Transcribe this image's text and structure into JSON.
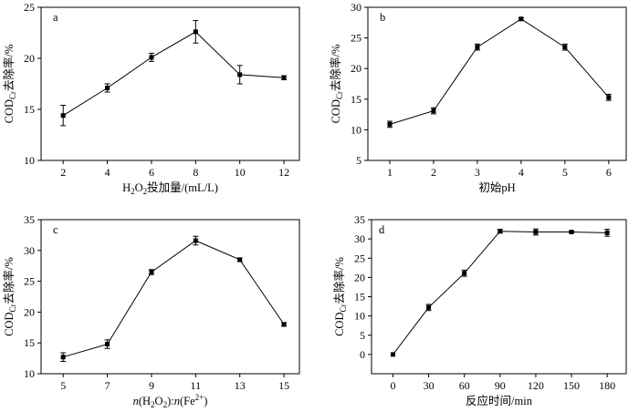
{
  "chart_data": [
    {
      "panel": "a",
      "type": "line",
      "xlabel": [
        {
          "text": "H"
        },
        {
          "text": "2",
          "sub": true
        },
        {
          "text": "O"
        },
        {
          "text": "2",
          "sub": true
        },
        {
          "text": "投加量/(mL/L)"
        }
      ],
      "ylabel": [
        {
          "text": "COD"
        },
        {
          "text": "Cr",
          "sub": true
        },
        {
          "text": "去除率/%"
        }
      ],
      "x": [
        2,
        4,
        6,
        8,
        10,
        12
      ],
      "y": [
        14.4,
        17.1,
        20.1,
        22.6,
        18.4,
        18.1
      ],
      "yerr": [
        1.0,
        0.4,
        0.4,
        1.1,
        0.9,
        0.2
      ],
      "xlim": [
        1,
        12.7
      ],
      "ylim": [
        10,
        25
      ],
      "xticks": [
        2,
        4,
        6,
        8,
        10,
        12
      ],
      "yticks": [
        10,
        15,
        20,
        25
      ],
      "grid": false,
      "color": "#000000"
    },
    {
      "panel": "b",
      "type": "line",
      "xlabel": [
        {
          "text": "初始pH"
        }
      ],
      "ylabel": [
        {
          "text": "COD"
        },
        {
          "text": "Cr",
          "sub": true
        },
        {
          "text": "去除率/%"
        }
      ],
      "x": [
        1,
        2,
        3,
        4,
        5,
        6
      ],
      "y": [
        10.9,
        13.1,
        23.5,
        28.1,
        23.5,
        15.3
      ],
      "yerr": [
        0.5,
        0.5,
        0.5,
        0.2,
        0.5,
        0.5
      ],
      "xlim": [
        0.5,
        6.4
      ],
      "ylim": [
        5,
        30
      ],
      "xticks": [
        1,
        2,
        3,
        4,
        5,
        6
      ],
      "yticks": [
        5,
        10,
        15,
        20,
        25,
        30
      ],
      "grid": false,
      "color": "#000000"
    },
    {
      "panel": "c",
      "type": "line",
      "xlabel": [
        {
          "text": "n",
          "italic": true
        },
        {
          "text": "(H"
        },
        {
          "text": "2",
          "sub": true
        },
        {
          "text": "O"
        },
        {
          "text": "2",
          "sub": true
        },
        {
          "text": "):"
        },
        {
          "text": "n",
          "italic": true
        },
        {
          "text": "(Fe"
        },
        {
          "text": "2+",
          "sup": true
        },
        {
          "text": ")"
        }
      ],
      "ylabel": [
        {
          "text": "COD"
        },
        {
          "text": "Cr",
          "sub": true
        },
        {
          "text": "去除率/%"
        }
      ],
      "x": [
        5,
        7,
        9,
        11,
        13,
        15
      ],
      "y": [
        12.7,
        14.8,
        26.5,
        31.6,
        28.5,
        18.0
      ],
      "yerr": [
        0.7,
        0.7,
        0.4,
        0.7,
        0.3,
        0.3
      ],
      "xlim": [
        4,
        15.7
      ],
      "ylim": [
        10,
        35
      ],
      "xticks": [
        5,
        7,
        9,
        11,
        13,
        15
      ],
      "yticks": [
        10,
        15,
        20,
        25,
        30,
        35
      ],
      "grid": false,
      "color": "#000000"
    },
    {
      "panel": "d",
      "type": "line",
      "xlabel": [
        {
          "text": "反应时间/min"
        }
      ],
      "ylabel": [
        {
          "text": "COD"
        },
        {
          "text": "Cr",
          "sub": true
        },
        {
          "text": "去除率/%"
        }
      ],
      "x": [
        0,
        30,
        60,
        90,
        120,
        150,
        180
      ],
      "y": [
        0,
        12.2,
        21.1,
        32.0,
        31.8,
        31.8,
        31.6
      ],
      "yerr": [
        0,
        0.8,
        0.8,
        0.5,
        0.8,
        0.2,
        0.9
      ],
      "xlim": [
        -18,
        196
      ],
      "ylim": [
        -5,
        35
      ],
      "xticks": [
        0,
        30,
        60,
        90,
        120,
        150,
        180
      ],
      "yticks": [
        0,
        5,
        10,
        15,
        20,
        25,
        30,
        35
      ],
      "grid": false,
      "color": "#000000"
    }
  ]
}
